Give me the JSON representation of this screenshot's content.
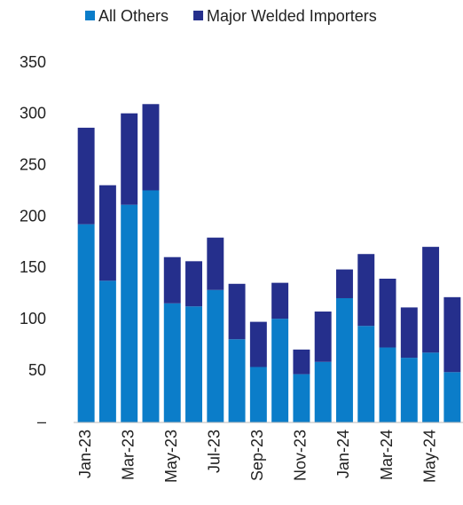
{
  "chart_data": {
    "type": "stacked_bar",
    "categories": [
      "Jan-23",
      null,
      "Mar-23",
      null,
      "May-23",
      null,
      "Jul-23",
      null,
      "Sep-23",
      null,
      "Nov-23",
      null,
      "Jan-24",
      null,
      "Mar-24",
      null,
      "May-24",
      null
    ],
    "series": [
      {
        "name": "All Others",
        "color": "#0b7dc9",
        "values": [
          193,
          138,
          212,
          226,
          116,
          113,
          129,
          81,
          54,
          101,
          47,
          59,
          121,
          94,
          73,
          63,
          68,
          49
        ]
      },
      {
        "name": "Major Welded Importers",
        "color": "#252f8c",
        "values": [
          94,
          93,
          89,
          84,
          45,
          44,
          51,
          54,
          44,
          35,
          24,
          49,
          28,
          70,
          67,
          49,
          103,
          73
        ]
      }
    ],
    "ylim": [
      0,
      350
    ],
    "yticks": [
      {
        "value": 0,
        "label": "–"
      },
      50,
      100,
      150,
      200,
      250,
      300,
      350
    ],
    "legend": "top"
  }
}
